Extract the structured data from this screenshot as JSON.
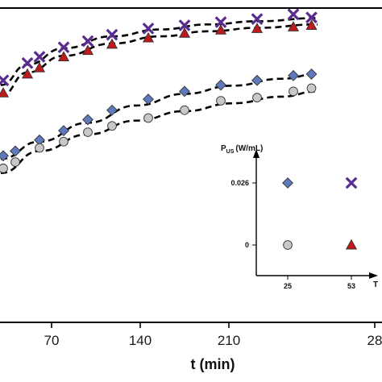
{
  "chart_data": {
    "type": "scatter",
    "xlabel": "t (min)",
    "x_ticks": [
      "70",
      "140",
      "210",
      "28"
    ],
    "xlim": [
      28,
      290
    ],
    "ylim": [
      0,
      1
    ],
    "series": [
      {
        "marker": "cross",
        "color": "#5b2c8f",
        "x": [
          30,
          50,
          60,
          80,
          100,
          120,
          150,
          180,
          210,
          240,
          270,
          285
        ],
        "y": [
          0.77,
          0.825,
          0.845,
          0.875,
          0.895,
          0.915,
          0.935,
          0.945,
          0.955,
          0.965,
          0.98,
          0.97
        ]
      },
      {
        "marker": "triangle",
        "color": "#c0191c",
        "x": [
          30,
          50,
          60,
          80,
          100,
          120,
          150,
          180,
          210,
          240,
          270,
          285
        ],
        "y": [
          0.73,
          0.79,
          0.81,
          0.845,
          0.865,
          0.885,
          0.905,
          0.92,
          0.93,
          0.935,
          0.94,
          0.945
        ]
      },
      {
        "marker": "diamond",
        "color": "#5f79bd",
        "x": [
          30,
          40,
          60,
          80,
          100,
          120,
          150,
          180,
          210,
          240,
          270,
          285
        ],
        "y": [
          0.53,
          0.545,
          0.58,
          0.61,
          0.645,
          0.675,
          0.71,
          0.735,
          0.755,
          0.77,
          0.785,
          0.79
        ]
      },
      {
        "marker": "circle",
        "color": "#c8c8c8",
        "x": [
          30,
          40,
          60,
          80,
          100,
          120,
          150,
          180,
          210,
          240,
          270,
          285
        ],
        "y": [
          0.49,
          0.51,
          0.555,
          0.575,
          0.605,
          0.625,
          0.65,
          0.675,
          0.705,
          0.715,
          0.735,
          0.745
        ]
      }
    ],
    "fit_curves": [
      {
        "series": 0,
        "style": "dashed",
        "x": [
          28,
          50,
          80,
          120,
          160,
          200,
          240,
          290
        ],
        "y": [
          0.755,
          0.82,
          0.872,
          0.91,
          0.932,
          0.948,
          0.958,
          0.968
        ]
      },
      {
        "series": 1,
        "style": "dashed",
        "x": [
          28,
          50,
          80,
          120,
          160,
          200,
          240,
          290
        ],
        "y": [
          0.72,
          0.795,
          0.848,
          0.887,
          0.91,
          0.926,
          0.937,
          0.948
        ]
      },
      {
        "series": 2,
        "style": "dashed",
        "x": [
          28,
          60,
          100,
          140,
          180,
          220,
          260,
          290
        ],
        "y": [
          0.52,
          0.575,
          0.635,
          0.69,
          0.727,
          0.753,
          0.775,
          0.79
        ]
      },
      {
        "series": 3,
        "style": "dashed",
        "x": [
          28,
          60,
          100,
          140,
          180,
          220,
          260,
          290
        ],
        "y": [
          0.475,
          0.545,
          0.598,
          0.642,
          0.672,
          0.697,
          0.718,
          0.735
        ]
      }
    ],
    "inset": {
      "ylabel_main": "P",
      "ylabel_sub": "US",
      "ylabel_unit": "(W/mL)",
      "xlabel": "T",
      "x_ticks": [
        "25",
        "53"
      ],
      "y_ticks": [
        "0.026",
        "0"
      ],
      "points": [
        {
          "x": "25",
          "y": "0.026",
          "marker": "diamond",
          "color": "#5f79bd"
        },
        {
          "x": "53",
          "y": "0.026",
          "marker": "cross",
          "color": "#5b2c8f"
        },
        {
          "x": "25",
          "y": "0",
          "marker": "circle",
          "color": "#c8c8c8"
        },
        {
          "x": "53",
          "y": "0",
          "marker": "triangle",
          "color": "#c0191c"
        }
      ]
    }
  }
}
